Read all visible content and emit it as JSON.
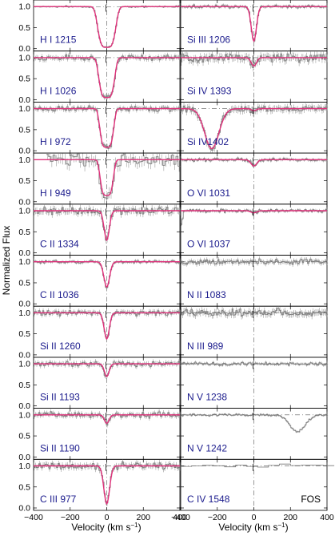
{
  "chart_data": {
    "type": "line",
    "ylabel": "Normalized Flux",
    "xlabel_left": "Velocity (km s",
    "xlabel_right": "Velocity (km s",
    "xlabel_sup": "−1",
    "xlabel_close": ")",
    "xlim": [
      -400,
      400
    ],
    "ylim": [
      0.0,
      1.1
    ],
    "x_ticks": [
      "−400",
      "−200",
      "0",
      "200",
      "400"
    ],
    "x_tick_values": [
      -400,
      -200,
      0,
      200,
      400
    ],
    "y_ticks": [
      "0.0",
      "0.5",
      "1.0"
    ],
    "y_tick_values": [
      0.0,
      0.5,
      1.0
    ],
    "colors": {
      "model": "#e0307a",
      "data": "#777777",
      "label": "#1a1a8c"
    },
    "panels_left": [
      {
        "ion": "H I 1215",
        "min": 0.03,
        "v0": 0,
        "w": 55,
        "sat": true,
        "noise": 0.015
      },
      {
        "ion": "H I 1026",
        "min": 0.05,
        "v0": 0,
        "w": 48,
        "sat": true,
        "noise": 0.05
      },
      {
        "ion": "H I 972",
        "min": 0.08,
        "v0": 0,
        "w": 42,
        "sat": true,
        "noise": 0.05
      },
      {
        "ion": "H I 949",
        "min": 0.15,
        "v0": 0,
        "w": 40,
        "sat": true,
        "noise": 0.12
      },
      {
        "ion": "C II 1334",
        "min": 0.3,
        "v0": 0,
        "w": 20,
        "sat": false,
        "noise": 0.07
      },
      {
        "ion": "C II 1036",
        "min": 0.4,
        "v0": 0,
        "w": 22,
        "sat": false,
        "noise": 0.03
      },
      {
        "ion": "Si II 1260",
        "min": 0.38,
        "v0": 0,
        "w": 20,
        "sat": false,
        "noise": 0.05
      },
      {
        "ion": "Si II 1193",
        "min": 0.7,
        "v0": 0,
        "w": 18,
        "sat": false,
        "noise": 0.05
      },
      {
        "ion": "Si II 1190",
        "min": 0.8,
        "v0": 0,
        "w": 18,
        "sat": false,
        "noise": 0.05
      },
      {
        "ion": "C III 977",
        "min": 0.1,
        "v0": 0,
        "w": 22,
        "sat": false,
        "noise": 0.06
      }
    ],
    "panels_right": [
      {
        "ion": "Si III 1206",
        "min": 0.18,
        "v0": 0,
        "w": 20,
        "sat": false,
        "noise": 0.03,
        "model": true
      },
      {
        "ion": "Si IV 1393",
        "min": 0.8,
        "v0": 0,
        "w": 20,
        "sat": false,
        "noise": 0.08,
        "model": true
      },
      {
        "ion": "Si IV1402",
        "min": 0.95,
        "v0": 0,
        "w": 18,
        "sat": false,
        "noise": 0.07,
        "model": true,
        "extra": {
          "v0": -230,
          "min": 0.05,
          "w": 55
        }
      },
      {
        "ion": "O VI 1031",
        "min": 0.85,
        "v0": 0,
        "w": 22,
        "sat": false,
        "noise": 0.03,
        "model": true
      },
      {
        "ion": "O VI 1037",
        "min": 0.95,
        "v0": 0,
        "w": 22,
        "sat": false,
        "noise": 0.03,
        "model": true,
        "edge": true
      },
      {
        "ion": "N II 1083",
        "min": 1.0,
        "v0": 0,
        "w": 20,
        "sat": false,
        "noise": 0.05,
        "model": false
      },
      {
        "ion": "N III 989",
        "min": 1.0,
        "v0": 0,
        "w": 20,
        "sat": false,
        "noise": 0.07,
        "model": false
      },
      {
        "ion": "N V 1238",
        "min": 1.0,
        "v0": 0,
        "w": 20,
        "sat": false,
        "noise": 0.03,
        "model": false
      },
      {
        "ion": "N V 1242",
        "min": 1.0,
        "v0": 0,
        "w": 20,
        "sat": false,
        "noise": 0.02,
        "model": false,
        "extra": {
          "v0": 240,
          "min": 0.6,
          "w": 60
        }
      },
      {
        "ion": "C IV 1548",
        "min": 1.0,
        "v0": 0,
        "w": 20,
        "sat": false,
        "noise": 0.03,
        "model": false,
        "fos": true
      }
    ],
    "fos_label": "FOS"
  }
}
